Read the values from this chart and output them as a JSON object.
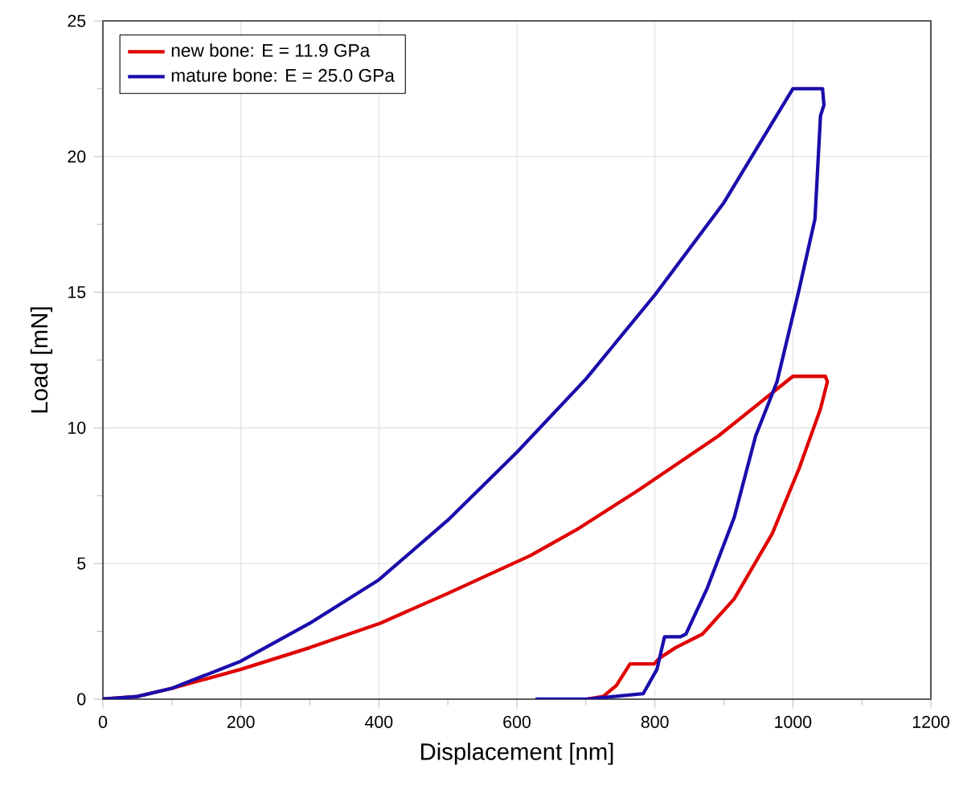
{
  "chart_data": {
    "type": "line",
    "xlabel": "Displacement [nm]",
    "ylabel": "Load [mN]",
    "xlim": [
      0,
      1200
    ],
    "ylim": [
      0,
      25
    ],
    "xticks": [
      0,
      200,
      400,
      600,
      800,
      1000,
      1200
    ],
    "yticks": [
      0,
      5,
      10,
      15,
      20,
      25
    ],
    "grid": true,
    "legend": "top left",
    "marker": "none",
    "line_style": "solid",
    "series": [
      {
        "name": "new bone: E = 11.9 GPa",
        "color": "#e00000",
        "x": [
          0,
          50,
          100,
          200,
          300,
          402,
          500,
          620,
          690,
          776,
          892,
          1000,
          1047,
          1050,
          1040,
          1009,
          970,
          915,
          869,
          830,
          806,
          799,
          764,
          744,
          725,
          700
        ],
        "values": [
          0,
          0.1,
          0.4,
          1.1,
          1.9,
          2.8,
          3.9,
          5.3,
          6.3,
          7.7,
          9.7,
          11.9,
          11.9,
          11.7,
          10.7,
          8.5,
          6.1,
          3.7,
          2.4,
          1.9,
          1.5,
          1.3,
          1.3,
          0.5,
          0.1,
          0
        ]
      },
      {
        "name": "mature bone: E = 25.0 GPa",
        "color": "#1a0dab",
        "x": [
          0,
          50,
          100,
          200,
          300,
          400,
          500,
          600,
          700,
          800,
          900,
          1000,
          1043,
          1045,
          1040,
          1032,
          1009,
          977,
          946,
          915,
          876,
          845,
          837,
          814,
          803,
          783,
          700,
          627
        ],
        "values": [
          0,
          0.1,
          0.4,
          1.4,
          2.8,
          4.4,
          6.6,
          9.1,
          11.8,
          14.9,
          18.3,
          22.5,
          22.5,
          21.9,
          21.5,
          17.7,
          15.1,
          11.7,
          9.7,
          6.7,
          4.1,
          2.4,
          2.3,
          2.3,
          1.1,
          0.2,
          0,
          0
        ]
      }
    ]
  }
}
